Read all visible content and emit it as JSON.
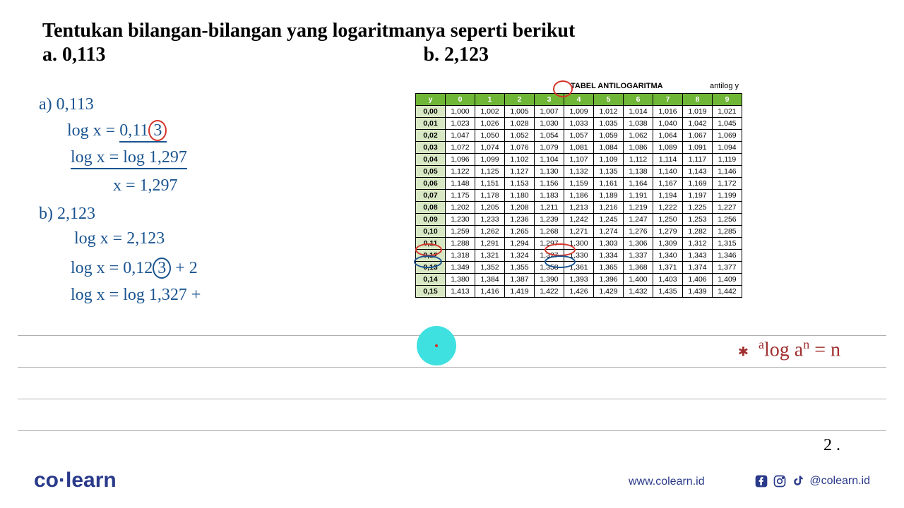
{
  "question": {
    "title": "Tentukan bilangan-bilangan yang logaritmanya seperti berikut",
    "a": "a. 0,113",
    "b": "b. 2,123"
  },
  "work_a": {
    "label": "a)  0,113",
    "line1_lhs": "log x  =",
    "line1_rhs_pre": "0,11",
    "line1_rhs_digit": "3",
    "line2": "log x =  log 1,297",
    "line3": "x =  1,297"
  },
  "work_b": {
    "label": "b)  2,123",
    "line1": "log x =  2,123",
    "line2_pre": "log x =  0,12",
    "line2_digit": "3",
    "line2_post": "+  2",
    "line3": "log x =  log 1,327 +"
  },
  "formula": "ᵃlog aⁿ = n",
  "page_num": "2 .",
  "logo": "co·learn",
  "url": "www.colearn.id",
  "handle": "@colearn.id",
  "table": {
    "title": "TABEL ANTILOGARITMA",
    "right_label": "antilog y",
    "headers": [
      "y",
      "0",
      "1",
      "2",
      "3",
      "4",
      "5",
      "6",
      "7",
      "8",
      "9"
    ],
    "rows": [
      [
        "0,00",
        "1,000",
        "1,002",
        "1,005",
        "1,007",
        "1,009",
        "1,012",
        "1,014",
        "1,016",
        "1,019",
        "1,021"
      ],
      [
        "0,01",
        "1,023",
        "1,026",
        "1,028",
        "1,030",
        "1,033",
        "1,035",
        "1,038",
        "1,040",
        "1,042",
        "1,045"
      ],
      [
        "0,02",
        "1,047",
        "1,050",
        "1,052",
        "1,054",
        "1,057",
        "1,059",
        "1,062",
        "1,064",
        "1,067",
        "1,069"
      ],
      [
        "0,03",
        "1,072",
        "1,074",
        "1,076",
        "1,079",
        "1,081",
        "1,084",
        "1,086",
        "1,089",
        "1,091",
        "1,094"
      ],
      [
        "0,04",
        "1,096",
        "1,099",
        "1,102",
        "1,104",
        "1,107",
        "1,109",
        "1,112",
        "1,114",
        "1,117",
        "1,119"
      ],
      [
        "0,05",
        "1,122",
        "1,125",
        "1,127",
        "1,130",
        "1,132",
        "1,135",
        "1,138",
        "1,140",
        "1,143",
        "1,146"
      ],
      [
        "0,06",
        "1,148",
        "1,151",
        "1,153",
        "1,156",
        "1,159",
        "1,161",
        "1,164",
        "1,167",
        "1,169",
        "1,172"
      ],
      [
        "0,07",
        "1,175",
        "1,178",
        "1,180",
        "1,183",
        "1,186",
        "1,189",
        "1,191",
        "1,194",
        "1,197",
        "1,199"
      ],
      [
        "0,08",
        "1,202",
        "1,205",
        "1,208",
        "1,211",
        "1,213",
        "1,216",
        "1,219",
        "1,222",
        "1,225",
        "1,227"
      ],
      [
        "0,09",
        "1,230",
        "1,233",
        "1,236",
        "1,239",
        "1,242",
        "1,245",
        "1,247",
        "1,250",
        "1,253",
        "1,256"
      ],
      [
        "0,10",
        "1,259",
        "1,262",
        "1,265",
        "1,268",
        "1,271",
        "1,274",
        "1,276",
        "1,279",
        "1,282",
        "1,285"
      ],
      [
        "0,11",
        "1,288",
        "1,291",
        "1,294",
        "1,297",
        "1,300",
        "1,303",
        "1,306",
        "1,309",
        "1,312",
        "1,315"
      ],
      [
        "0,12",
        "1,318",
        "1,321",
        "1,324",
        "1,327",
        "1,330",
        "1,334",
        "1,337",
        "1,340",
        "1,343",
        "1,346"
      ],
      [
        "0,13",
        "1,349",
        "1,352",
        "1,355",
        "1,358",
        "1,361",
        "1,365",
        "1,368",
        "1,371",
        "1,374",
        "1,377"
      ],
      [
        "0,14",
        "1,380",
        "1,384",
        "1,387",
        "1,390",
        "1,393",
        "1,396",
        "1,400",
        "1,403",
        "1,406",
        "1,409"
      ],
      [
        "0,15",
        "1,413",
        "1,416",
        "1,419",
        "1,422",
        "1,426",
        "1,429",
        "1,432",
        "1,435",
        "1,439",
        "1,442"
      ]
    ]
  },
  "styling": {
    "header_bg": "#6fb536",
    "ycol_bg": "#d9e8c4",
    "hand_blue": "#1a5490",
    "hand_red": "#a03030",
    "circle_red": "#d4342a",
    "cursor": "#3fe0e0",
    "brand": "#2a3a8a"
  }
}
